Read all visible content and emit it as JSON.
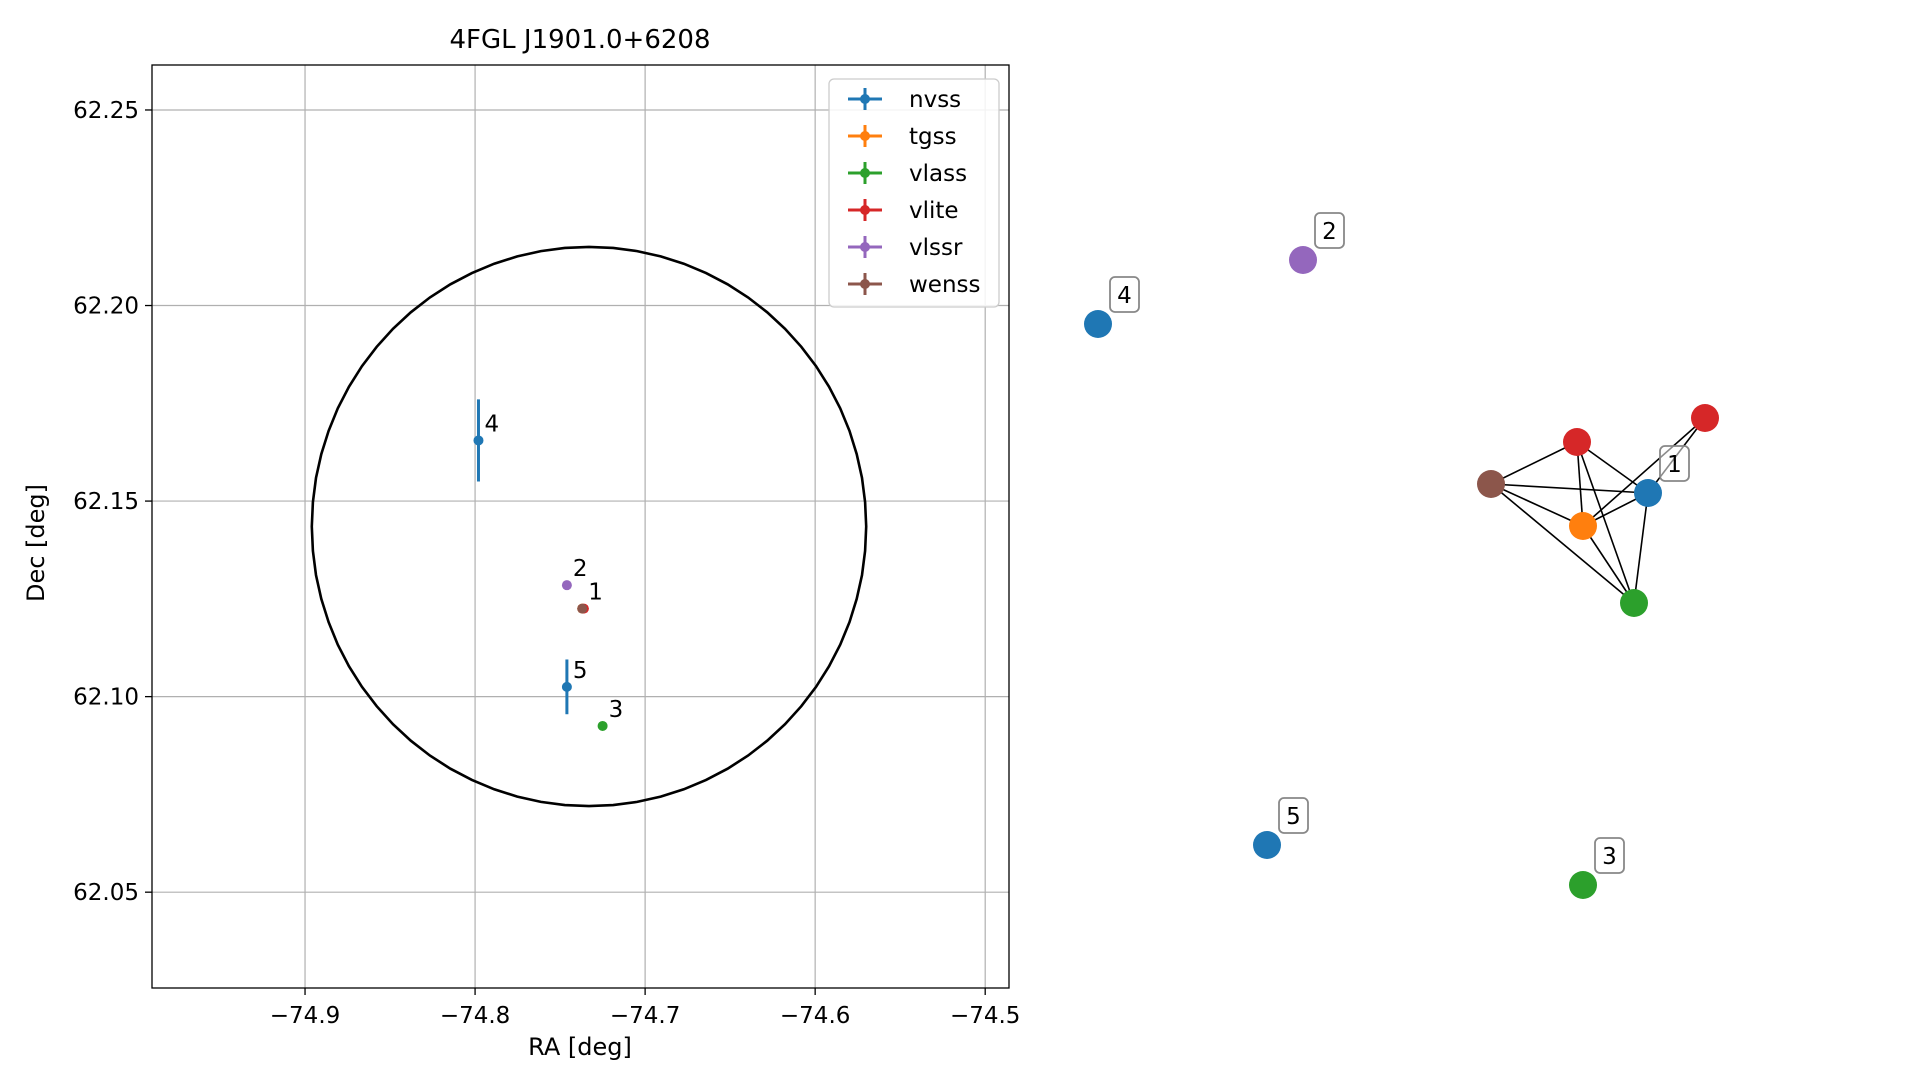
{
  "chart_data": [
    {
      "type": "scatter",
      "title": "4FGL J1901.0+6208",
      "xlabel": "RA [deg]",
      "ylabel": "Dec [deg]",
      "xlim": [
        -74.99,
        -74.486
      ],
      "ylim": [
        62.0255,
        62.2615
      ],
      "x_ticks": [
        -74.9,
        -74.8,
        -74.7,
        -74.6,
        -74.5
      ],
      "x_tick_labels": [
        "−74.9",
        "−74.8",
        "−74.7",
        "−74.6",
        "−74.5"
      ],
      "y_ticks": [
        62.05,
        62.1,
        62.15,
        62.2,
        62.25
      ],
      "y_tick_labels": [
        "62.05",
        "62.10",
        "62.15",
        "62.20",
        "62.25"
      ],
      "grid": true,
      "legend_position": "top-right",
      "series": [
        {
          "name": "nvss",
          "color": "#1f77b4",
          "points": [
            {
              "label": "4",
              "ra": -74.798,
              "dec": 62.1655,
              "dec_err": 0.0105
            },
            {
              "label": "5",
              "ra": -74.746,
              "dec": 62.1025,
              "dec_err": 0.007
            }
          ]
        },
        {
          "name": "tgss",
          "color": "#ff7f0e",
          "points": [
            {
              "label": "",
              "ra": -74.737,
              "dec": 62.1225,
              "dec_err": 0
            }
          ]
        },
        {
          "name": "vlass",
          "color": "#2ca02c",
          "points": [
            {
              "label": "3",
              "ra": -74.725,
              "dec": 62.0925,
              "dec_err": 0
            }
          ]
        },
        {
          "name": "vlite",
          "color": "#d62728",
          "points": [
            {
              "label": "",
              "ra": -74.736,
              "dec": 62.1225,
              "dec_err": 0
            }
          ]
        },
        {
          "name": "vlssr",
          "color": "#9467bd",
          "points": [
            {
              "label": "2",
              "ra": -74.746,
              "dec": 62.1285,
              "dec_err": 0
            }
          ]
        },
        {
          "name": "wenss",
          "color": "#8c564b",
          "points": [
            {
              "label": "1",
              "ra": -74.737,
              "dec": 62.1225,
              "dec_err": 0
            }
          ]
        }
      ],
      "ellipse": {
        "center_ra": -74.733,
        "center_dec": 62.1435,
        "ra_semi_axis": 0.163,
        "dec_semi_axis": 0.0715,
        "color": "#000000"
      }
    },
    {
      "type": "network",
      "nodes": [
        {
          "id": "n1",
          "color": "#1f77b4",
          "label": "1"
        },
        {
          "id": "n2",
          "color": "#9467bd",
          "label": "2"
        },
        {
          "id": "n3",
          "color": "#2ca02c",
          "label": "3"
        },
        {
          "id": "n4",
          "color": "#1f77b4",
          "label": "4"
        },
        {
          "id": "n5",
          "color": "#1f77b4",
          "label": "5"
        },
        {
          "id": "n6",
          "color": "#d62728",
          "label": ""
        },
        {
          "id": "n7",
          "color": "#d62728",
          "label": ""
        },
        {
          "id": "n8",
          "color": "#8c564b",
          "label": ""
        },
        {
          "id": "n9",
          "color": "#ff7f0e",
          "label": ""
        },
        {
          "id": "n10",
          "color": "#2ca02c",
          "label": ""
        }
      ],
      "edges": [
        [
          "n8",
          "n7"
        ],
        [
          "n8",
          "n9"
        ],
        [
          "n8",
          "n1"
        ],
        [
          "n8",
          "n10"
        ],
        [
          "n7",
          "n9"
        ],
        [
          "n7",
          "n1"
        ],
        [
          "n7",
          "n10"
        ],
        [
          "n9",
          "n1"
        ],
        [
          "n9",
          "n6"
        ],
        [
          "n9",
          "n10"
        ],
        [
          "n1",
          "n6"
        ],
        [
          "n1",
          "n10"
        ]
      ]
    }
  ]
}
